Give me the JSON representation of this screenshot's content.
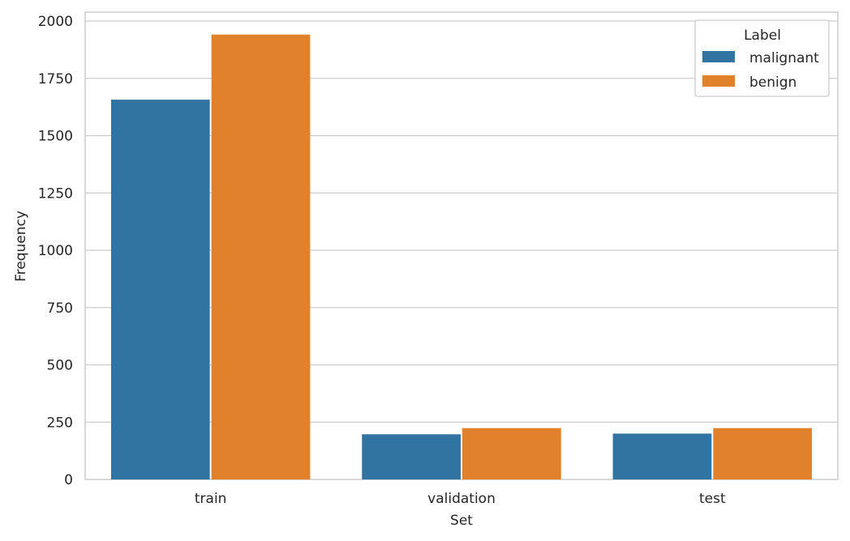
{
  "chart_data": {
    "type": "bar",
    "categories": [
      "train",
      "validation",
      "test"
    ],
    "series": [
      {
        "name": "malignant",
        "values": [
          1657,
          197,
          200
        ],
        "color": "#3274a1"
      },
      {
        "name": "benign",
        "values": [
          1941,
          224,
          224
        ],
        "color": "#e1812c"
      }
    ],
    "title": "",
    "xlabel": "Set",
    "ylabel": "Frequency",
    "ylim": [
      0,
      2000
    ],
    "yticks": [
      0,
      250,
      500,
      750,
      1000,
      1250,
      1500,
      1750,
      2000
    ],
    "grid": true,
    "legend": {
      "title": "Label",
      "placement": "top-right"
    }
  }
}
